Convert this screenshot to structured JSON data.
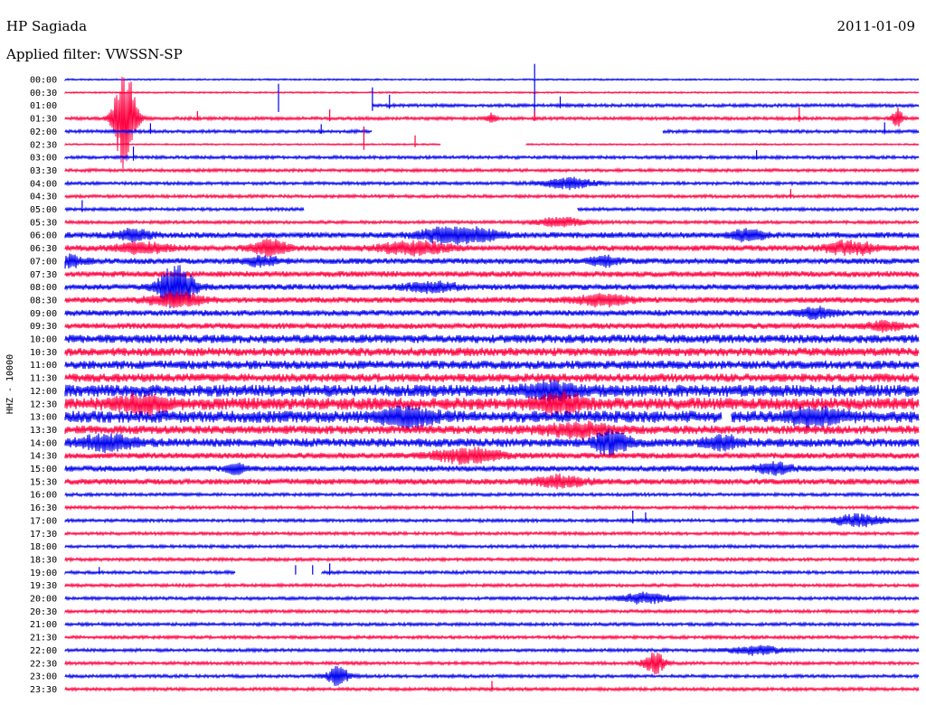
{
  "header": {
    "station": "HP Sagiada",
    "date": "2011-01-09",
    "filter": "Applied filter: VWSSN-SP"
  },
  "colors": {
    "blue": "#0000ee",
    "red": "#ff0040"
  },
  "chart_data": {
    "type": "line",
    "ylabel": "HHZ - 10000",
    "row_times": [
      "00:00",
      "00:30",
      "01:00",
      "01:30",
      "02:00",
      "02:30",
      "03:00",
      "03:30",
      "04:00",
      "04:30",
      "05:00",
      "05:30",
      "06:00",
      "06:30",
      "07:00",
      "07:30",
      "08:00",
      "08:30",
      "09:00",
      "09:30",
      "10:00",
      "10:30",
      "11:00",
      "11:30",
      "12:00",
      "12:30",
      "13:00",
      "13:30",
      "14:00",
      "14:30",
      "15:00",
      "15:30",
      "16:00",
      "16:30",
      "17:00",
      "17:30",
      "18:00",
      "18:30",
      "19:00",
      "19:30",
      "20:00",
      "20:30",
      "21:00",
      "21:30",
      "22:00",
      "22:30",
      "23:00",
      "23:30"
    ],
    "row_colors": [
      "blue",
      "red",
      "blue",
      "red",
      "blue",
      "red",
      "blue",
      "red",
      "blue",
      "red",
      "blue",
      "red",
      "blue",
      "red",
      "blue",
      "red",
      "blue",
      "red",
      "blue",
      "red",
      "blue",
      "red",
      "blue",
      "red",
      "blue",
      "red",
      "blue",
      "red",
      "blue",
      "red",
      "blue",
      "red",
      "blue",
      "red",
      "blue",
      "red",
      "blue",
      "red",
      "blue",
      "red",
      "blue",
      "red",
      "blue",
      "red",
      "blue",
      "red",
      "blue",
      "red"
    ],
    "noise_level": [
      0,
      0,
      1,
      1,
      1,
      0,
      1,
      1,
      1,
      1,
      1,
      1,
      2,
      2,
      2,
      2,
      2,
      2,
      2,
      2,
      3,
      3,
      3,
      3,
      4,
      4,
      4,
      3,
      3,
      2,
      2,
      2,
      1,
      1,
      1,
      1,
      1,
      1,
      1,
      1,
      1,
      1,
      1,
      1,
      1,
      1,
      1,
      1
    ],
    "events": [
      {
        "row": 3,
        "pos": 0.07,
        "amp": 58,
        "width": 0.012
      },
      {
        "row": 3,
        "pos": 0.5,
        "amp": 6,
        "width": 0.006
      },
      {
        "row": 3,
        "pos": 0.975,
        "amp": 12,
        "width": 0.006
      },
      {
        "row": 8,
        "pos": 0.59,
        "amp": 6,
        "width": 0.03
      },
      {
        "row": 11,
        "pos": 0.58,
        "amp": 5,
        "width": 0.03
      },
      {
        "row": 12,
        "pos": 0.08,
        "amp": 6,
        "width": 0.02
      },
      {
        "row": 12,
        "pos": 0.44,
        "amp": 7,
        "width": 0.03
      },
      {
        "row": 12,
        "pos": 0.48,
        "amp": 7,
        "width": 0.03
      },
      {
        "row": 12,
        "pos": 0.8,
        "amp": 6,
        "width": 0.02
      },
      {
        "row": 13,
        "pos": 0.09,
        "amp": 6,
        "width": 0.03
      },
      {
        "row": 13,
        "pos": 0.24,
        "amp": 9,
        "width": 0.02
      },
      {
        "row": 13,
        "pos": 0.41,
        "amp": 7,
        "width": 0.04
      },
      {
        "row": 13,
        "pos": 0.92,
        "amp": 7,
        "width": 0.03
      },
      {
        "row": 14,
        "pos": 0.0,
        "amp": 7,
        "width": 0.02
      },
      {
        "row": 14,
        "pos": 0.23,
        "amp": 5,
        "width": 0.02
      },
      {
        "row": 14,
        "pos": 0.63,
        "amp": 5,
        "width": 0.02
      },
      {
        "row": 16,
        "pos": 0.13,
        "amp": 26,
        "width": 0.02
      },
      {
        "row": 16,
        "pos": 0.43,
        "amp": 5,
        "width": 0.03
      },
      {
        "row": 17,
        "pos": 0.13,
        "amp": 8,
        "width": 0.03
      },
      {
        "row": 17,
        "pos": 0.63,
        "amp": 6,
        "width": 0.03
      },
      {
        "row": 18,
        "pos": 0.88,
        "amp": 6,
        "width": 0.02
      },
      {
        "row": 19,
        "pos": 0.96,
        "amp": 5,
        "width": 0.02
      },
      {
        "row": 24,
        "pos": 0.57,
        "amp": 8,
        "width": 0.03
      },
      {
        "row": 25,
        "pos": 0.09,
        "amp": 8,
        "width": 0.03
      },
      {
        "row": 25,
        "pos": 0.58,
        "amp": 9,
        "width": 0.03
      },
      {
        "row": 26,
        "pos": 0.4,
        "amp": 9,
        "width": 0.03
      },
      {
        "row": 26,
        "pos": 0.88,
        "amp": 8,
        "width": 0.03
      },
      {
        "row": 27,
        "pos": 0.6,
        "amp": 7,
        "width": 0.04
      },
      {
        "row": 28,
        "pos": 0.05,
        "amp": 9,
        "width": 0.03
      },
      {
        "row": 28,
        "pos": 0.64,
        "amp": 14,
        "width": 0.02
      },
      {
        "row": 28,
        "pos": 0.77,
        "amp": 7,
        "width": 0.02
      },
      {
        "row": 29,
        "pos": 0.47,
        "amp": 8,
        "width": 0.04
      },
      {
        "row": 30,
        "pos": 0.2,
        "amp": 7,
        "width": 0.01
      },
      {
        "row": 30,
        "pos": 0.83,
        "amp": 6,
        "width": 0.02
      },
      {
        "row": 31,
        "pos": 0.58,
        "amp": 6,
        "width": 0.03
      },
      {
        "row": 34,
        "pos": 0.93,
        "amp": 7,
        "width": 0.03
      },
      {
        "row": 40,
        "pos": 0.68,
        "amp": 6,
        "width": 0.03
      },
      {
        "row": 44,
        "pos": 0.81,
        "amp": 5,
        "width": 0.03
      },
      {
        "row": 45,
        "pos": 0.69,
        "amp": 13,
        "width": 0.012
      },
      {
        "row": 46,
        "pos": 0.32,
        "amp": 11,
        "width": 0.012
      }
    ],
    "spikes": [
      {
        "row": 2,
        "pos": 0.25,
        "amp": 24
      },
      {
        "row": 2,
        "pos": 0.36,
        "amp": 20
      },
      {
        "row": 2,
        "pos": 0.38,
        "amp": 12
      },
      {
        "row": 2,
        "pos": 0.55,
        "amp": 46
      },
      {
        "row": 2,
        "pos": 0.58,
        "amp": 10
      },
      {
        "row": 3,
        "pos": 0.155,
        "amp": 8
      },
      {
        "row": 3,
        "pos": 0.31,
        "amp": 10
      },
      {
        "row": 3,
        "pos": 0.55,
        "amp": 9
      },
      {
        "row": 3,
        "pos": 0.86,
        "amp": 12
      },
      {
        "row": 4,
        "pos": 0.1,
        "amp": 9
      },
      {
        "row": 4,
        "pos": 0.3,
        "amp": 8
      },
      {
        "row": 4,
        "pos": 0.96,
        "amp": 10
      },
      {
        "row": 5,
        "pos": 0.35,
        "amp": 20
      },
      {
        "row": 5,
        "pos": 0.41,
        "amp": 10
      },
      {
        "row": 6,
        "pos": 0.08,
        "amp": 12
      },
      {
        "row": 6,
        "pos": 0.81,
        "amp": 8
      },
      {
        "row": 10,
        "pos": 0.02,
        "amp": 10
      },
      {
        "row": 9,
        "pos": 0.85,
        "amp": 8
      },
      {
        "row": 34,
        "pos": 0.665,
        "amp": 11
      },
      {
        "row": 34,
        "pos": 0.68,
        "amp": 9
      },
      {
        "row": 38,
        "pos": 0.04,
        "amp": 6
      },
      {
        "row": 38,
        "pos": 0.27,
        "amp": 8
      },
      {
        "row": 38,
        "pos": 0.29,
        "amp": 8
      },
      {
        "row": 38,
        "pos": 0.31,
        "amp": 10
      },
      {
        "row": 47,
        "pos": 0.5,
        "amp": 9
      }
    ],
    "gaps": [
      {
        "row": 2,
        "start": 0.0,
        "end": 0.36
      },
      {
        "row": 3,
        "start": 0.0,
        "end": 0.0
      },
      {
        "row": 4,
        "start": 0.36,
        "end": 0.7
      },
      {
        "row": 5,
        "start": 0.44,
        "end": 0.54
      },
      {
        "row": 10,
        "start": 0.28,
        "end": 0.6
      },
      {
        "row": 38,
        "start": 0.2,
        "end": 0.3
      },
      {
        "row": 26,
        "start": 0.77,
        "end": 0.78
      }
    ]
  }
}
